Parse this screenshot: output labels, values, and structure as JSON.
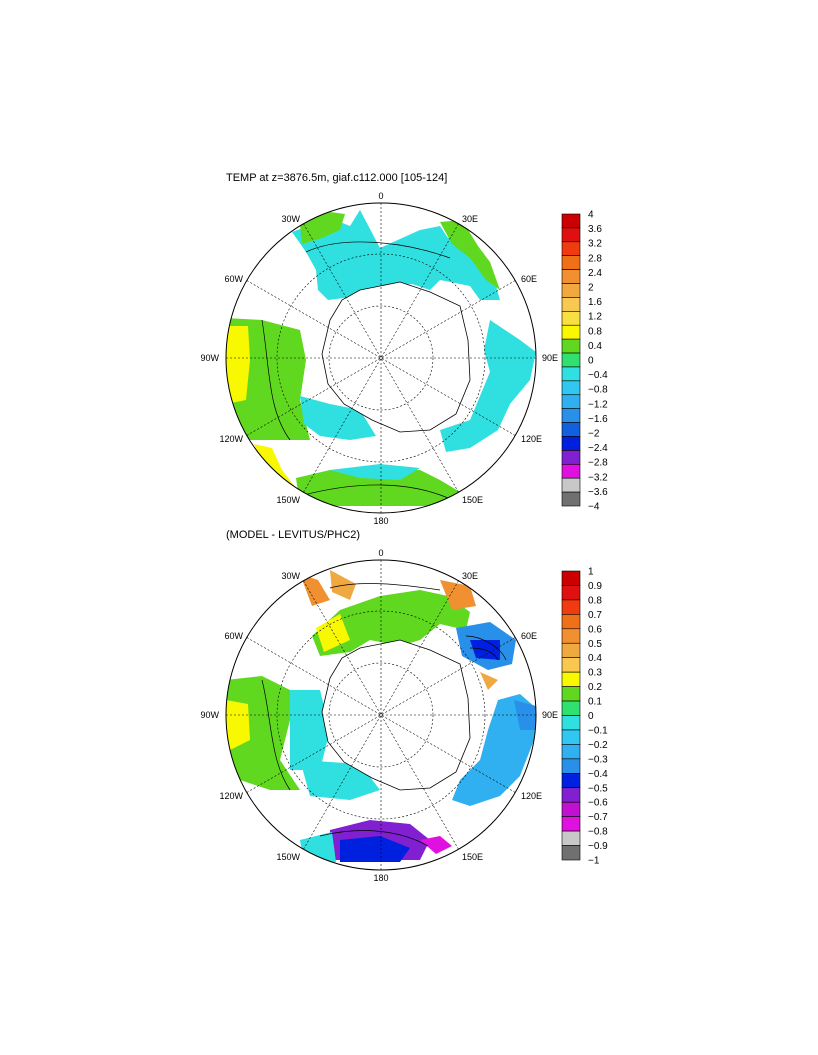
{
  "panels": [
    {
      "title": "TEMP at z=3876.5m, giaf.c112.000 [105-124]",
      "lon_labels": {
        "top": "0",
        "bottom": "180",
        "left": "90W",
        "right": "90E",
        "nw30": "30W",
        "ne30": "30E",
        "nw60": "60W",
        "ne60": "60E",
        "sw120": "120W",
        "se120": "120E",
        "sw150": "150W",
        "se150": "150E"
      },
      "colorbar": {
        "labels": [
          "4",
          "3.6",
          "3.2",
          "2.8",
          "2.4",
          "2",
          "1.6",
          "1.2",
          "0.8",
          "0.4",
          "0",
          "−0.4",
          "−0.8",
          "−1.2",
          "−1.6",
          "−2",
          "−2.4",
          "−2.8",
          "−3.2",
          "−3.6",
          "−4"
        ],
        "colors": [
          "#cc0000",
          "#e01010",
          "#f03a10",
          "#f07018",
          "#f09030",
          "#f0a840",
          "#f8c850",
          "#f8e040",
          "#f8f800",
          "#60d820",
          "#30e070",
          "#30e0e0",
          "#30c8f0",
          "#30b0f0",
          "#2890e8",
          "#1060e0",
          "#0020e0",
          "#8020d0",
          "#e010e0",
          "#c8c8c8",
          "#707070"
        ]
      }
    },
    {
      "title": "(MODEL - LEVITUS/PHC2)",
      "lon_labels": {
        "top": "0",
        "bottom": "180",
        "left": "90W",
        "right": "90E",
        "nw30": "30W",
        "ne30": "30E",
        "nw60": "60W",
        "ne60": "60E",
        "sw120": "120W",
        "se120": "120E",
        "sw150": "150W",
        "se150": "150E"
      },
      "colorbar": {
        "labels": [
          "1",
          "0.9",
          "0.8",
          "0.7",
          "0.6",
          "0.5",
          "0.4",
          "0.3",
          "0.2",
          "0.1",
          "0",
          "−0.1",
          "−0.2",
          "−0.3",
          "−0.4",
          "−0.5",
          "−0.6",
          "−0.7",
          "−0.8",
          "−0.9",
          "−1"
        ],
        "colors": [
          "#cc0000",
          "#e01010",
          "#f03a10",
          "#f07018",
          "#f09030",
          "#f0a840",
          "#f8c850",
          "#f8f800",
          "#60d820",
          "#30e070",
          "#30e0e0",
          "#30c8f0",
          "#30b0f0",
          "#2890e8",
          "#0020e0",
          "#8020d0",
          "#c010d0",
          "#e010e0",
          "#c8c8c8",
          "#707070"
        ]
      }
    }
  ]
}
